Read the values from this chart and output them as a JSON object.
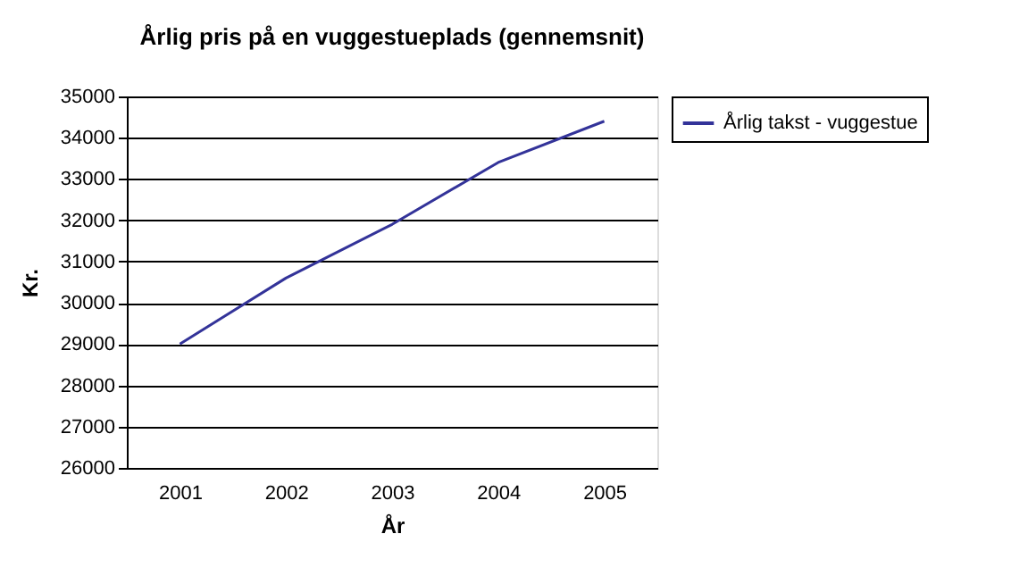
{
  "chart_data": {
    "type": "line",
    "title": "Årlig pris på en vuggestueplads (gennemsnit)",
    "xlabel": "År",
    "ylabel": "Kr.",
    "categories": [
      "2001",
      "2002",
      "2003",
      "2004",
      "2005"
    ],
    "series": [
      {
        "name": "Årlig takst - vuggestue",
        "color": "#333399",
        "values": [
          29000,
          30600,
          31900,
          33400,
          34400
        ]
      }
    ],
    "ylim": [
      26000,
      35000
    ],
    "yticks": [
      26000,
      27000,
      28000,
      29000,
      30000,
      31000,
      32000,
      33000,
      34000,
      35000
    ],
    "grid": "y",
    "legend": "right",
    "marker": "none",
    "line_style": "solid"
  }
}
